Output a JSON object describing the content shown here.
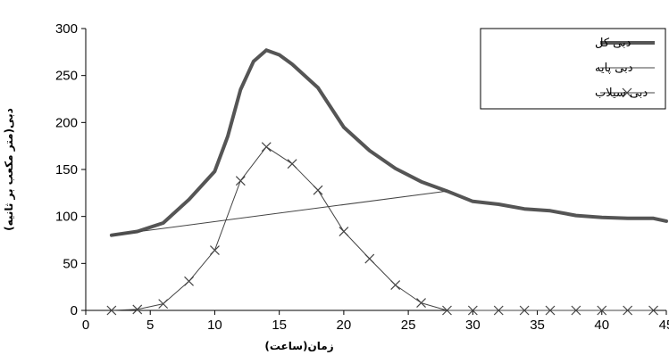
{
  "chart_data": {
    "type": "line",
    "xlabel": "زمان(ساعت)",
    "ylabel": "دبی(متر مکعب بر ثانیه)",
    "xlim": [
      0,
      45
    ],
    "ylim": [
      0,
      300
    ],
    "x_ticks": [
      "0",
      "5",
      "10",
      "15",
      "20",
      "25",
      "30",
      "35",
      "40",
      "45"
    ],
    "y_ticks": [
      "0",
      "50",
      "100",
      "150",
      "200",
      "250",
      "300"
    ],
    "grid": false,
    "legend_position": "top-right",
    "series": [
      {
        "name": "دبی کل",
        "style": "thick",
        "color": "#555555",
        "x": [
          2,
          4,
          6,
          8,
          10,
          11,
          12,
          13,
          14,
          15,
          16,
          18,
          20,
          22,
          24,
          26,
          28,
          30,
          32,
          34,
          36,
          38,
          40,
          42,
          44,
          45
        ],
        "y": [
          80,
          84,
          93,
          118,
          148,
          185,
          235,
          265,
          277,
          272,
          262,
          237,
          195,
          170,
          151,
          137,
          127,
          116,
          113,
          108,
          106,
          101,
          99,
          98,
          98,
          95
        ]
      },
      {
        "name": "دبی پایه",
        "style": "thin",
        "color": "#444444",
        "x": [
          2,
          28
        ],
        "y": [
          80,
          127
        ]
      },
      {
        "name": "دبی سیلاب",
        "style": "thin-x",
        "color": "#444444",
        "x": [
          2,
          4,
          6,
          8,
          10,
          12,
          14,
          16,
          18,
          20,
          22,
          24,
          26,
          28,
          30,
          32,
          34,
          36,
          38,
          40,
          42,
          44
        ],
        "y": [
          0,
          1,
          7,
          31,
          64,
          138,
          174,
          156,
          128,
          84,
          55,
          27,
          8,
          0,
          0,
          0,
          0,
          0,
          0,
          0,
          0,
          0
        ]
      }
    ]
  }
}
